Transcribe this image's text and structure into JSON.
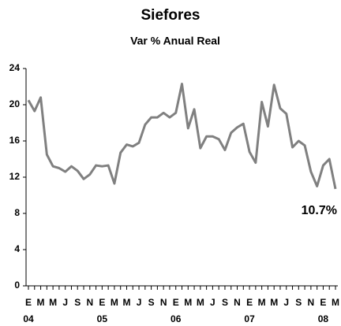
{
  "chart_data": {
    "type": "line",
    "title": "Siefores",
    "subtitle": "Var % Anual Real",
    "categories": [
      "E",
      null,
      "M",
      null,
      "M",
      null,
      "J",
      null,
      "S",
      null,
      "N",
      null,
      "E",
      null,
      "M",
      null,
      "M",
      null,
      "J",
      null,
      "S",
      null,
      "N",
      null,
      "E",
      null,
      "M",
      null,
      "M",
      null,
      "J",
      null,
      "S",
      null,
      "N",
      null,
      "E",
      null,
      "M",
      null,
      "M",
      null,
      "J",
      null,
      "S",
      null,
      "N",
      null,
      "E",
      null,
      "M"
    ],
    "year_labels": [
      "04",
      "05",
      "06",
      "07",
      "08"
    ],
    "series": [
      {
        "name": "Siefores",
        "color": "#808080",
        "values": [
          20.5,
          19.3,
          20.8,
          14.5,
          13.2,
          13.0,
          12.6,
          13.2,
          12.7,
          11.8,
          12.3,
          13.3,
          13.2,
          13.3,
          11.3,
          14.7,
          15.6,
          15.4,
          15.8,
          17.8,
          18.6,
          18.6,
          19.1,
          18.6,
          19.1,
          22.3,
          17.4,
          19.5,
          15.2,
          16.5,
          16.5,
          16.2,
          15.0,
          16.9,
          17.5,
          17.9,
          14.8,
          13.6,
          20.3,
          17.6,
          22.2,
          19.6,
          19.0,
          15.3,
          16.0,
          15.5,
          12.6,
          11.0,
          13.3,
          14.0,
          10.7
        ],
        "value_labels": [
          null,
          null,
          null,
          null,
          null,
          null,
          null,
          null,
          null,
          null,
          null,
          null,
          null,
          null,
          null,
          null,
          null,
          null,
          null,
          null,
          null,
          null,
          null,
          null,
          null,
          null,
          null,
          null,
          null,
          null,
          null,
          null,
          null,
          null,
          null,
          null,
          null,
          null,
          null,
          null,
          null,
          null,
          null,
          null,
          null,
          null,
          null,
          null,
          null,
          null,
          "10.7%"
        ]
      }
    ],
    "ylim": [
      0,
      24
    ],
    "yticks": [
      0,
      4,
      8,
      12,
      16,
      20,
      24
    ],
    "grid": false
  }
}
